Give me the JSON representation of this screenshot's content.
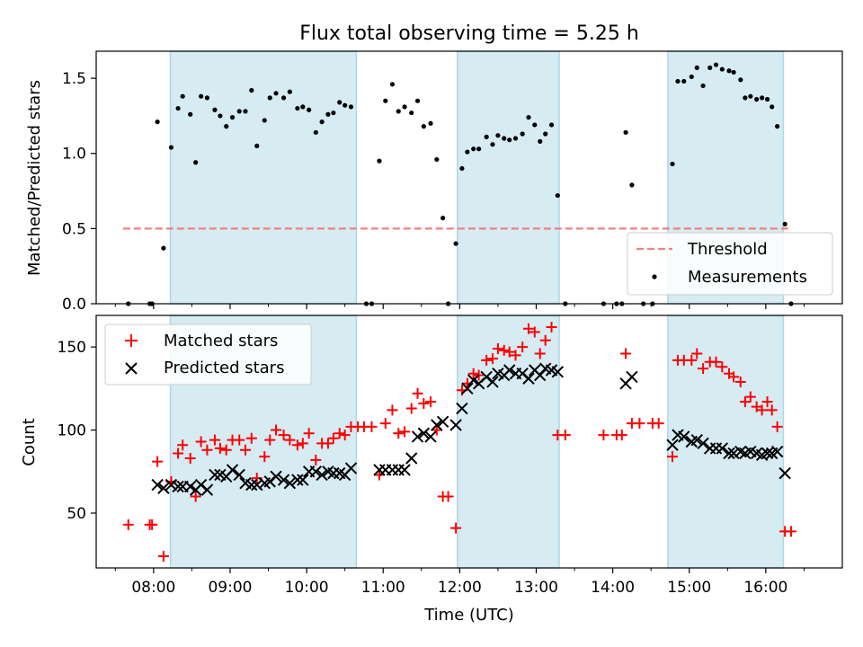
{
  "title": "Flux total observing time = 5.25 h",
  "colors": {
    "shade": "#add8e6",
    "threshold": "#f08080",
    "measurements": "#000000",
    "matched": "#ff0000",
    "predicted": "#000000"
  },
  "chart_data": [
    {
      "type": "scatter",
      "name": "ratio-panel",
      "ylabel": "Matched/Predicted stars",
      "xlabel": "",
      "xlim": [
        7.25,
        17.0
      ],
      "ylim": [
        0,
        1.68
      ],
      "y_ticks": [
        0,
        0.5,
        1.0,
        1.5
      ],
      "y_tick_labels": [
        "0.0",
        "0.5",
        "1.0",
        "1.5"
      ],
      "shaded_spans": [
        [
          8.22,
          10.65
        ],
        [
          11.97,
          13.3
        ],
        [
          14.72,
          16.23
        ]
      ],
      "threshold": {
        "y": 0.5,
        "x_range": [
          7.6,
          16.3
        ]
      },
      "legend": {
        "position": "lower-right",
        "entries": [
          "Threshold",
          "Measurements"
        ]
      },
      "measurements": [
        [
          7.67,
          0
        ],
        [
          7.95,
          0
        ],
        [
          7.98,
          0
        ],
        [
          8.05,
          1.21
        ],
        [
          8.13,
          0.37
        ],
        [
          8.23,
          1.04
        ],
        [
          8.32,
          1.3
        ],
        [
          8.38,
          1.38
        ],
        [
          8.48,
          1.26
        ],
        [
          8.55,
          0.94
        ],
        [
          8.62,
          1.38
        ],
        [
          8.7,
          1.37
        ],
        [
          8.8,
          1.29
        ],
        [
          8.87,
          1.25
        ],
        [
          8.95,
          1.18
        ],
        [
          9.03,
          1.24
        ],
        [
          9.12,
          1.28
        ],
        [
          9.2,
          1.28
        ],
        [
          9.28,
          1.42
        ],
        [
          9.35,
          1.05
        ],
        [
          9.45,
          1.22
        ],
        [
          9.52,
          1.37
        ],
        [
          9.6,
          1.4
        ],
        [
          9.7,
          1.37
        ],
        [
          9.78,
          1.41
        ],
        [
          9.88,
          1.3
        ],
        [
          9.95,
          1.31
        ],
        [
          10.03,
          1.29
        ],
        [
          10.12,
          1.14
        ],
        [
          10.2,
          1.21
        ],
        [
          10.28,
          1.26
        ],
        [
          10.35,
          1.27
        ],
        [
          10.43,
          1.34
        ],
        [
          10.5,
          1.32
        ],
        [
          10.58,
          1.31
        ],
        [
          10.78,
          0
        ],
        [
          10.85,
          0
        ],
        [
          10.95,
          0.95
        ],
        [
          11.03,
          1.35
        ],
        [
          11.12,
          1.46
        ],
        [
          11.2,
          1.28
        ],
        [
          11.28,
          1.31
        ],
        [
          11.37,
          1.27
        ],
        [
          11.45,
          1.35
        ],
        [
          11.53,
          1.18
        ],
        [
          11.62,
          1.2
        ],
        [
          11.7,
          0.96
        ],
        [
          11.78,
          0.57
        ],
        [
          11.85,
          0
        ],
        [
          11.95,
          0.4
        ],
        [
          12.03,
          0.9
        ],
        [
          12.1,
          1.01
        ],
        [
          12.18,
          1.03
        ],
        [
          12.25,
          1.03
        ],
        [
          12.35,
          1.11
        ],
        [
          12.43,
          1.06
        ],
        [
          12.5,
          1.12
        ],
        [
          12.58,
          1.1
        ],
        [
          12.65,
          1.09
        ],
        [
          12.73,
          1.1
        ],
        [
          12.82,
          1.13
        ],
        [
          12.9,
          1.24
        ],
        [
          12.98,
          1.19
        ],
        [
          13.05,
          1.08
        ],
        [
          13.12,
          1.13
        ],
        [
          13.2,
          1.19
        ],
        [
          13.28,
          0.72
        ],
        [
          13.38,
          0
        ],
        [
          13.88,
          0
        ],
        [
          14.05,
          0
        ],
        [
          14.12,
          0
        ],
        [
          14.17,
          1.14
        ],
        [
          14.25,
          0.79
        ],
        [
          14.4,
          0
        ],
        [
          14.52,
          0
        ],
        [
          14.78,
          0.93
        ],
        [
          14.85,
          1.48
        ],
        [
          14.93,
          1.48
        ],
        [
          15.03,
          1.51
        ],
        [
          15.1,
          1.57
        ],
        [
          15.18,
          1.45
        ],
        [
          15.27,
          1.57
        ],
        [
          15.35,
          1.59
        ],
        [
          15.43,
          1.56
        ],
        [
          15.52,
          1.55
        ],
        [
          15.58,
          1.54
        ],
        [
          15.67,
          1.49
        ],
        [
          15.73,
          1.37
        ],
        [
          15.8,
          1.38
        ],
        [
          15.88,
          1.36
        ],
        [
          15.95,
          1.37
        ],
        [
          16.02,
          1.36
        ],
        [
          16.08,
          1.31
        ],
        [
          16.15,
          1.18
        ],
        [
          16.25,
          0.53
        ],
        [
          16.33,
          0
        ]
      ]
    },
    {
      "type": "scatter",
      "name": "count-panel",
      "ylabel": "Count",
      "xlabel": "Time (UTC)",
      "xlim": [
        7.25,
        17.0
      ],
      "ylim": [
        17,
        169
      ],
      "x_ticks": [
        8,
        9,
        10,
        11,
        12,
        13,
        14,
        15,
        16
      ],
      "x_tick_labels": [
        "08:00",
        "09:00",
        "10:00",
        "11:00",
        "12:00",
        "13:00",
        "14:00",
        "15:00",
        "16:00"
      ],
      "y_ticks": [
        50,
        100,
        150
      ],
      "y_tick_labels": [
        "50",
        "100",
        "150"
      ],
      "shaded_spans": [
        [
          8.22,
          10.65
        ],
        [
          11.97,
          13.3
        ],
        [
          14.72,
          16.23
        ]
      ],
      "legend": {
        "position": "top-left",
        "entries": [
          "Matched stars",
          "Predicted stars"
        ]
      },
      "series": [
        {
          "name": "Matched stars",
          "marker": "plus",
          "points": [
            [
              7.67,
              43
            ],
            [
              7.95,
              43
            ],
            [
              7.98,
              43
            ],
            [
              8.05,
              81
            ],
            [
              8.13,
              24
            ],
            [
              8.23,
              69
            ],
            [
              8.32,
              86
            ],
            [
              8.38,
              91
            ],
            [
              8.48,
              83
            ],
            [
              8.55,
              60
            ],
            [
              8.62,
              93
            ],
            [
              8.7,
              88
            ],
            [
              8.8,
              94
            ],
            [
              8.87,
              89
            ],
            [
              8.95,
              88
            ],
            [
              9.03,
              94
            ],
            [
              9.12,
              94
            ],
            [
              9.2,
              88
            ],
            [
              9.28,
              95
            ],
            [
              9.35,
              71
            ],
            [
              9.45,
              84
            ],
            [
              9.52,
              94
            ],
            [
              9.6,
              100
            ],
            [
              9.7,
              97
            ],
            [
              9.78,
              94
            ],
            [
              9.88,
              91
            ],
            [
              9.95,
              92
            ],
            [
              10.03,
              98
            ],
            [
              10.12,
              82
            ],
            [
              10.2,
              92
            ],
            [
              10.28,
              92
            ],
            [
              10.35,
              95
            ],
            [
              10.43,
              98
            ],
            [
              10.5,
              97
            ],
            [
              10.58,
              102
            ],
            [
              10.67,
              102
            ],
            [
              10.75,
              102
            ],
            [
              10.85,
              102
            ],
            [
              10.95,
              73
            ],
            [
              11.03,
              104
            ],
            [
              11.12,
              112
            ],
            [
              11.2,
              98
            ],
            [
              11.28,
              99
            ],
            [
              11.37,
              113
            ],
            [
              11.45,
              122
            ],
            [
              11.53,
              116
            ],
            [
              11.62,
              117
            ],
            [
              11.7,
              100
            ],
            [
              11.78,
              60
            ],
            [
              11.85,
              60
            ],
            [
              11.95,
              41
            ],
            [
              12.03,
              124
            ],
            [
              12.1,
              128
            ],
            [
              12.18,
              134
            ],
            [
              12.25,
              133
            ],
            [
              12.35,
              142
            ],
            [
              12.43,
              143
            ],
            [
              12.5,
              149
            ],
            [
              12.58,
              148
            ],
            [
              12.65,
              147
            ],
            [
              12.73,
              145
            ],
            [
              12.82,
              150
            ],
            [
              12.9,
              161
            ],
            [
              12.98,
              159
            ],
            [
              13.05,
              146
            ],
            [
              13.12,
              154
            ],
            [
              13.2,
              162
            ],
            [
              13.28,
              97
            ],
            [
              13.38,
              97
            ],
            [
              13.88,
              97
            ],
            [
              14.05,
              97
            ],
            [
              14.12,
              97
            ],
            [
              14.17,
              146
            ],
            [
              14.25,
              104
            ],
            [
              14.35,
              104
            ],
            [
              14.52,
              104
            ],
            [
              14.6,
              104
            ],
            [
              14.78,
              84
            ],
            [
              14.85,
              142
            ],
            [
              14.93,
              142
            ],
            [
              15.03,
              142
            ],
            [
              15.1,
              146
            ],
            [
              15.18,
              137
            ],
            [
              15.27,
              141
            ],
            [
              15.35,
              141
            ],
            [
              15.43,
              138
            ],
            [
              15.52,
              134
            ],
            [
              15.58,
              132
            ],
            [
              15.67,
              129
            ],
            [
              15.73,
              117
            ],
            [
              15.8,
              120
            ],
            [
              15.88,
              114
            ],
            [
              15.95,
              112
            ],
            [
              16.02,
              117
            ],
            [
              16.08,
              112
            ],
            [
              16.15,
              102
            ],
            [
              16.25,
              39
            ],
            [
              16.33,
              39
            ]
          ]
        },
        {
          "name": "Predicted stars",
          "marker": "x",
          "points": [
            [
              8.05,
              67
            ],
            [
              8.13,
              65
            ],
            [
              8.23,
              67
            ],
            [
              8.32,
              66
            ],
            [
              8.38,
              66
            ],
            [
              8.48,
              66
            ],
            [
              8.55,
              64
            ],
            [
              8.62,
              67
            ],
            [
              8.7,
              64
            ],
            [
              8.8,
              73
            ],
            [
              8.87,
              73
            ],
            [
              8.95,
              72
            ],
            [
              9.03,
              76
            ],
            [
              9.12,
              73
            ],
            [
              9.2,
              68
            ],
            [
              9.28,
              67
            ],
            [
              9.35,
              67
            ],
            [
              9.45,
              68
            ],
            [
              9.52,
              69
            ],
            [
              9.6,
              72
            ],
            [
              9.7,
              70
            ],
            [
              9.78,
              68
            ],
            [
              9.88,
              70
            ],
            [
              9.95,
              70
            ],
            [
              10.03,
              75
            ],
            [
              10.12,
              75
            ],
            [
              10.2,
              73
            ],
            [
              10.28,
              75
            ],
            [
              10.35,
              74
            ],
            [
              10.43,
              74
            ],
            [
              10.5,
              73
            ],
            [
              10.58,
              77
            ],
            [
              10.95,
              76
            ],
            [
              11.03,
              76
            ],
            [
              11.12,
              76
            ],
            [
              11.2,
              76
            ],
            [
              11.28,
              76
            ],
            [
              11.37,
              83
            ],
            [
              11.45,
              96
            ],
            [
              11.53,
              98
            ],
            [
              11.62,
              96
            ],
            [
              11.7,
              103
            ],
            [
              11.78,
              105
            ],
            [
              11.95,
              103
            ],
            [
              12.03,
              113
            ],
            [
              12.1,
              125
            ],
            [
              12.18,
              130
            ],
            [
              12.25,
              128
            ],
            [
              12.35,
              132
            ],
            [
              12.43,
              129
            ],
            [
              12.5,
              134
            ],
            [
              12.58,
              133
            ],
            [
              12.65,
              136
            ],
            [
              12.73,
              134
            ],
            [
              12.82,
              134
            ],
            [
              12.9,
              131
            ],
            [
              12.98,
              136
            ],
            [
              13.05,
              133
            ],
            [
              13.12,
              137
            ],
            [
              13.2,
              136
            ],
            [
              13.28,
              135
            ],
            [
              14.17,
              128
            ],
            [
              14.25,
              132
            ],
            [
              14.78,
              91
            ],
            [
              14.85,
              97
            ],
            [
              14.93,
              96
            ],
            [
              15.03,
              93
            ],
            [
              15.1,
              94
            ],
            [
              15.18,
              92
            ],
            [
              15.27,
              89
            ],
            [
              15.35,
              89
            ],
            [
              15.43,
              89
            ],
            [
              15.52,
              86
            ],
            [
              15.58,
              86
            ],
            [
              15.67,
              87
            ],
            [
              15.73,
              86
            ],
            [
              15.8,
              87
            ],
            [
              15.88,
              86
            ],
            [
              15.95,
              85
            ],
            [
              16.02,
              86
            ],
            [
              16.08,
              86
            ],
            [
              16.15,
              87
            ],
            [
              16.25,
              74
            ]
          ]
        }
      ]
    }
  ]
}
